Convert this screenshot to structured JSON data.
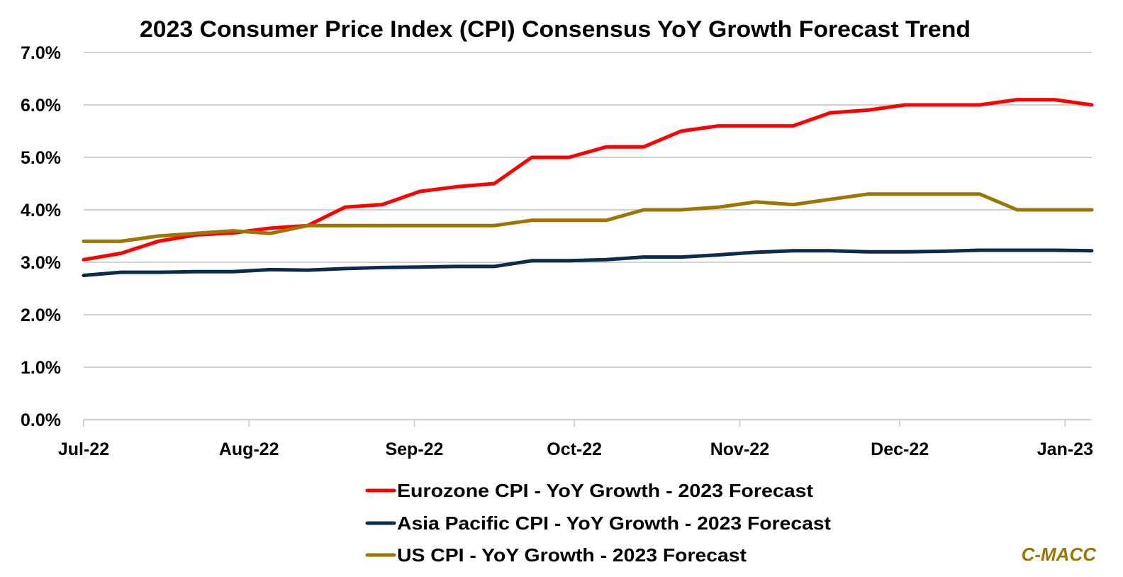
{
  "chart_data": {
    "type": "line",
    "title": "2023 Consumer Price Index (CPI) Consensus YoY Growth Forecast Trend",
    "xlabel": "",
    "ylabel": "",
    "ylim": [
      0,
      7
    ],
    "yticks": [
      "0.0%",
      "1.0%",
      "2.0%",
      "3.0%",
      "4.0%",
      "5.0%",
      "6.0%",
      "7.0%"
    ],
    "ytick_values": [
      0,
      1,
      2,
      3,
      4,
      5,
      6,
      7
    ],
    "xticks": [
      {
        "label": "Jul-22",
        "day": 0
      },
      {
        "label": "Aug-22",
        "day": 31
      },
      {
        "label": "Sep-22",
        "day": 62
      },
      {
        "label": "Oct-22",
        "day": 92
      },
      {
        "label": "Nov-22",
        "day": 123
      },
      {
        "label": "Dec-22",
        "day": 153
      },
      {
        "label": "Jan-23",
        "day": 184
      }
    ],
    "xlim_days": [
      0,
      189
    ],
    "grid": true,
    "legend_position": "bottom-center",
    "x_days": [
      0,
      7,
      14,
      21,
      28,
      35,
      42,
      49,
      56,
      63,
      70,
      77,
      84,
      91,
      98,
      105,
      112,
      119,
      126,
      133,
      140,
      147,
      154,
      161,
      168,
      175,
      182,
      189
    ],
    "series": [
      {
        "name": "Eurozone CPI - YoY Growth - 2023 Forecast",
        "color": "#FF0000",
        "values": [
          3.05,
          3.17,
          3.4,
          3.52,
          3.56,
          3.65,
          3.7,
          4.05,
          4.1,
          4.35,
          4.44,
          4.5,
          5.0,
          5.0,
          5.2,
          5.2,
          5.5,
          5.6,
          5.6,
          5.6,
          5.85,
          5.9,
          6.0,
          6.0,
          6.0,
          6.1,
          6.1,
          6.0
        ]
      },
      {
        "name": "Asia Pacific CPI - YoY Growth - 2023 Forecast",
        "color": "#0B2D4B",
        "values": [
          2.75,
          2.81,
          2.81,
          2.82,
          2.82,
          2.86,
          2.85,
          2.88,
          2.9,
          2.91,
          2.92,
          2.92,
          3.03,
          3.03,
          3.05,
          3.1,
          3.1,
          3.14,
          3.19,
          3.22,
          3.22,
          3.2,
          3.2,
          3.21,
          3.23,
          3.23,
          3.23,
          3.22
        ]
      },
      {
        "name": "US CPI - YoY Growth - 2023 Forecast",
        "color": "#9C7505",
        "values": [
          3.4,
          3.4,
          3.5,
          3.55,
          3.6,
          3.55,
          3.7,
          3.7,
          3.7,
          3.7,
          3.7,
          3.7,
          3.8,
          3.8,
          3.8,
          4.0,
          4.0,
          4.05,
          4.15,
          4.1,
          4.2,
          4.3,
          4.3,
          4.3,
          4.3,
          4.0,
          4.0,
          4.0
        ]
      }
    ],
    "annotations": [
      {
        "text": "C-MACC",
        "color": "#9C7505",
        "position": "bottom-right"
      }
    ]
  }
}
